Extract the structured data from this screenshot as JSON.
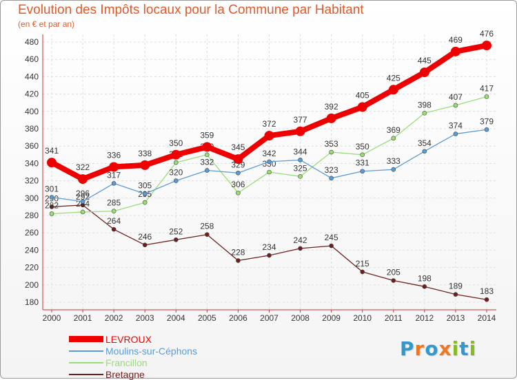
{
  "chart_data": {
    "type": "line",
    "title": "Evolution des Impôts locaux pour la Commune par Habitant",
    "subtitle": "(en € et par an)",
    "xlabel": "",
    "ylabel": "",
    "ylim": [
      180,
      480
    ],
    "yticks": [
      180,
      200,
      220,
      240,
      260,
      280,
      300,
      320,
      340,
      360,
      380,
      400,
      420,
      440,
      460,
      480
    ],
    "grid": true,
    "categories": [
      "2000",
      "2001",
      "2002",
      "2003",
      "2004",
      "2005",
      "2006",
      "2007",
      "2008",
      "2009",
      "2010",
      "2011",
      "2012",
      "2013",
      "2014"
    ],
    "series": [
      {
        "name": "Bretagne",
        "color": "#6b1f1f",
        "values": [
          290,
          292,
          264,
          246,
          252,
          258,
          228,
          234,
          242,
          245,
          215,
          205,
          198,
          189,
          183
        ]
      },
      {
        "name": "Francillon",
        "color": "#99dd77",
        "values": [
          282,
          284,
          285,
          295,
          341,
          350,
          306,
          330,
          325,
          353,
          350,
          369,
          398,
          407,
          417
        ]
      },
      {
        "name": "Moulins-sur-Céphons",
        "color": "#5b9bd5",
        "values": [
          301,
          296,
          317,
          305,
          320,
          332,
          329,
          342,
          344,
          323,
          331,
          333,
          354,
          374,
          379
        ]
      },
      {
        "name": "LEVROUX",
        "color": "#ee0000",
        "values": [
          341,
          322,
          336,
          338,
          350,
          359,
          345,
          372,
          377,
          392,
          405,
          425,
          445,
          469,
          476
        ]
      }
    ],
    "legend": [
      "LEVROUX",
      "Moulins-sur-Céphons",
      "Francillon",
      "Bretagne"
    ],
    "legend_position": "bottom-left"
  },
  "logo": {
    "letters": [
      "P",
      "r",
      "o",
      "x",
      "i",
      "t",
      "i"
    ],
    "colors": [
      "#3399cc",
      "#ee7722",
      "#3399cc",
      "#ee7722",
      "#88bb22",
      "#3399cc",
      "#88bb22"
    ]
  }
}
